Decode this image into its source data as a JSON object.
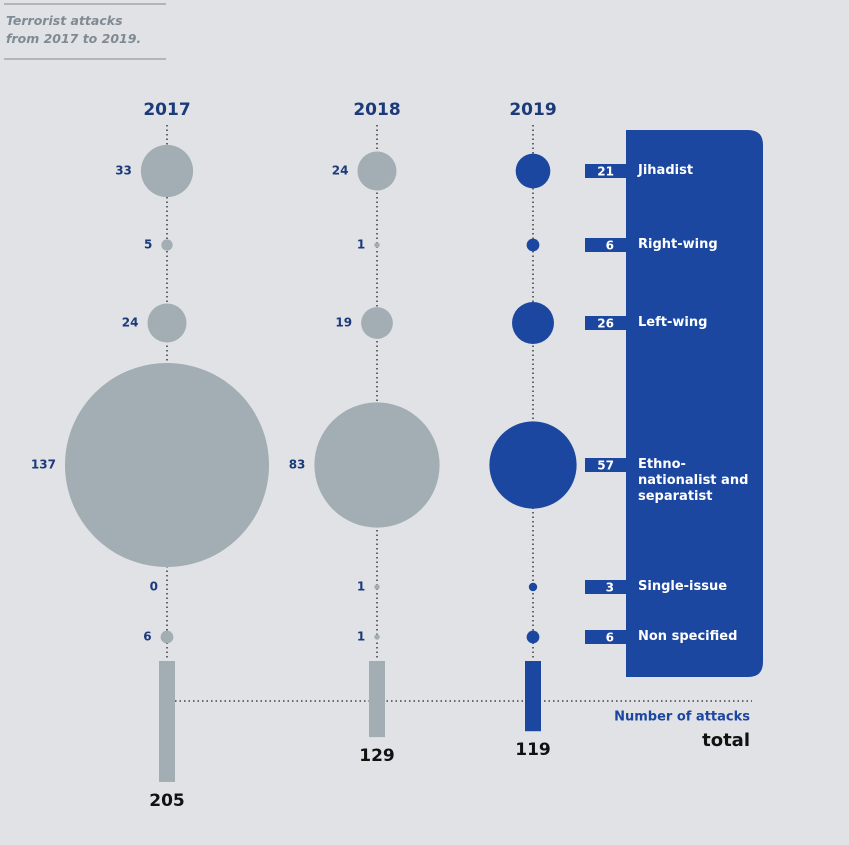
{
  "chart_data": {
    "type": "bubble-matrix",
    "title": "Terrorist attacks from 2017 to 2019.",
    "categories": [
      "Jihadist",
      "Right-wing",
      "Left-wing",
      "Ethno-nationalist and separatist",
      "Single-issue",
      "Non specified"
    ],
    "series": [
      {
        "name": "2017",
        "color": "#a2aeb3",
        "values": [
          33,
          5,
          24,
          137,
          0,
          6
        ],
        "total": 205
      },
      {
        "name": "2018",
        "color": "#a2aeb3",
        "values": [
          24,
          1,
          19,
          83,
          1,
          1
        ],
        "total": 129
      },
      {
        "name": "2019",
        "color": "#1c47a0",
        "values": [
          21,
          6,
          26,
          57,
          3,
          6
        ],
        "total": 119
      }
    ],
    "total_label": "Number of attacks",
    "total_title": "total"
  }
}
